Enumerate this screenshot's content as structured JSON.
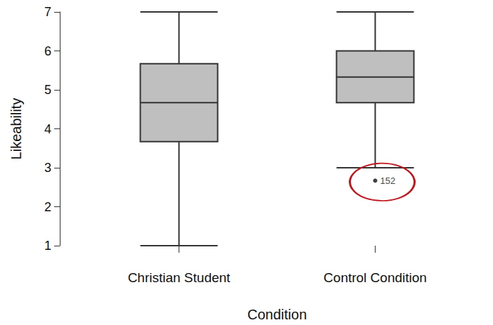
{
  "chart_data": {
    "type": "boxplot",
    "x_label": "Condition",
    "y_label": "Likeability",
    "categories": [
      "Christian Student",
      "Control Condition"
    ],
    "boxes": [
      [
        1,
        3.67,
        4.67,
        5.67,
        7
      ],
      [
        3,
        4.67,
        5.33,
        6,
        7
      ]
    ],
    "outliers": [
      {
        "category": "Control Condition",
        "value": 2.67,
        "label": "152"
      }
    ],
    "color": "#bfbfbf",
    "ylim": [
      1,
      7
    ],
    "yticks": [
      1,
      2,
      3,
      4,
      5,
      6,
      7
    ],
    "grid": false
  }
}
